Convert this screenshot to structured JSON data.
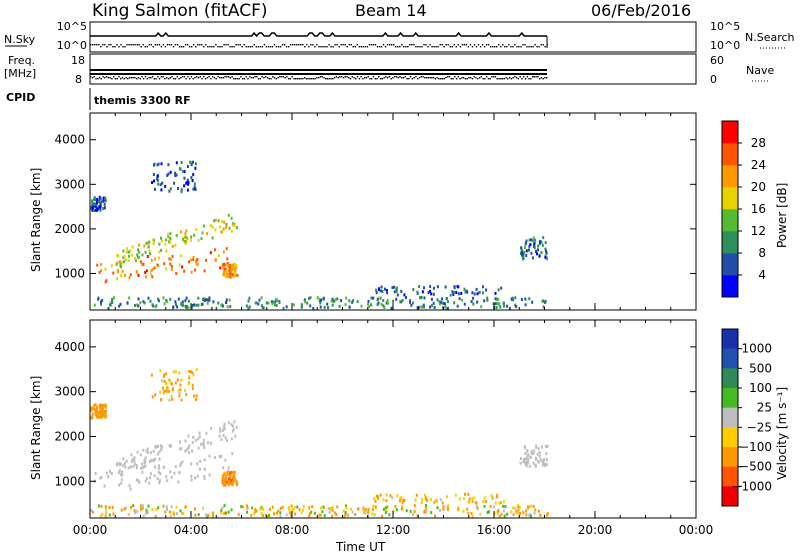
{
  "header": {
    "station": "King Salmon (fitACF)",
    "beam": "Beam 14",
    "date": "06/Feb/2016"
  },
  "ancillary": {
    "nsky_label": "N.Sky",
    "nsky_ticks": [
      "10^5",
      "10^0"
    ],
    "nsearch_label": "N.Search",
    "nsearch_ticks": [
      "10^5",
      "10^0"
    ],
    "freq_label_line1": "Freq.",
    "freq_label_line2": "[MHz]",
    "freq_ticks": [
      "18",
      "8"
    ],
    "nave_label": "Nave",
    "nave_ticks": [
      "60",
      "0"
    ],
    "cpid_label": "CPID",
    "cpid_value": "themis 3300 RF"
  },
  "colors": {
    "power_scale": [
      "#0000ff",
      "#1f4fa8",
      "#2d8f5a",
      "#55bb33",
      "#e8d200",
      "#ff9900",
      "#ff5500",
      "#ff0000"
    ],
    "velocity_scale": [
      "#ee0000",
      "#ff5500",
      "#ff9900",
      "#ffcc00",
      "#bdbdbd",
      "#44bb22",
      "#2e8b57",
      "#2050b0",
      "#1a2faa"
    ]
  },
  "chart_data": [
    {
      "type": "heatmap",
      "title": "",
      "xlabel": "",
      "ylabel": "Slant Range [km]",
      "xlim": [
        0,
        24
      ],
      "ylim": [
        180,
        4600
      ],
      "x_ticks": [
        "00:00",
        "04:00",
        "08:00",
        "12:00",
        "16:00",
        "20:00",
        "00:00"
      ],
      "y_ticks": [
        1000,
        2000,
        3000,
        4000
      ],
      "colorbar": {
        "label": "Power [dB]",
        "range": [
          0,
          32
        ],
        "ticks": [
          4,
          8,
          12,
          16,
          20,
          24,
          28
        ]
      },
      "series": [
        {
          "x_range": [
            0.0,
            5.6
          ],
          "y_range": [
            900,
            1400
          ],
          "value": 24
        },
        {
          "x_range": [
            1.0,
            5.8
          ],
          "y_range": [
            1250,
            2100
          ],
          "value": 17
        },
        {
          "x_range": [
            2.4,
            4.2
          ],
          "y_range": [
            2800,
            3500
          ],
          "value": 6
        },
        {
          "x_range": [
            0.0,
            0.6
          ],
          "y_range": [
            2400,
            2700
          ],
          "value": 6
        },
        {
          "x_range": [
            5.2,
            5.8
          ],
          "y_range": [
            900,
            1200
          ],
          "value": 22
        },
        {
          "x_range": [
            11.2,
            16.4
          ],
          "y_range": [
            500,
            700
          ],
          "value": 7
        },
        {
          "x_range": [
            17.0,
            18.1
          ],
          "y_range": [
            1300,
            1800
          ],
          "value": 8
        },
        {
          "x_range": [
            0.0,
            18.1
          ],
          "y_range": [
            200,
            450
          ],
          "value": 9
        }
      ]
    },
    {
      "type": "heatmap",
      "title": "",
      "xlabel": "Time UT",
      "ylabel": "Slant Range [km]",
      "xlim": [
        0,
        24
      ],
      "ylim": [
        180,
        4600
      ],
      "x_ticks": [
        "00:00",
        "04:00",
        "08:00",
        "12:00",
        "16:00",
        "20:00",
        "00:00"
      ],
      "y_ticks": [
        1000,
        2000,
        3000,
        4000
      ],
      "colorbar": {
        "label": "Velocity [m s⁻¹]",
        "range": [
          -1500,
          1500
        ],
        "ticks": [
          "1000",
          "500",
          "100",
          "25",
          "−25",
          "−100",
          "−500",
          "−1000"
        ]
      },
      "series": [
        {
          "x_range": [
            0.0,
            5.6
          ],
          "y_range": [
            900,
            1400
          ],
          "value": 0
        },
        {
          "x_range": [
            1.0,
            5.8
          ],
          "y_range": [
            1250,
            2100
          ],
          "value": 0
        },
        {
          "x_range": [
            2.4,
            4.2
          ],
          "y_range": [
            2800,
            3500
          ],
          "value": -150
        },
        {
          "x_range": [
            0.0,
            0.6
          ],
          "y_range": [
            2400,
            2700
          ],
          "value": -300
        },
        {
          "x_range": [
            5.2,
            5.8
          ],
          "y_range": [
            900,
            1200
          ],
          "value": -400
        },
        {
          "x_range": [
            11.2,
            16.4
          ],
          "y_range": [
            500,
            700
          ],
          "value": -150
        },
        {
          "x_range": [
            17.0,
            18.1
          ],
          "y_range": [
            1300,
            1800
          ],
          "value": 0
        },
        {
          "x_range": [
            0.0,
            18.1
          ],
          "y_range": [
            200,
            450
          ],
          "value": -80
        }
      ]
    }
  ]
}
